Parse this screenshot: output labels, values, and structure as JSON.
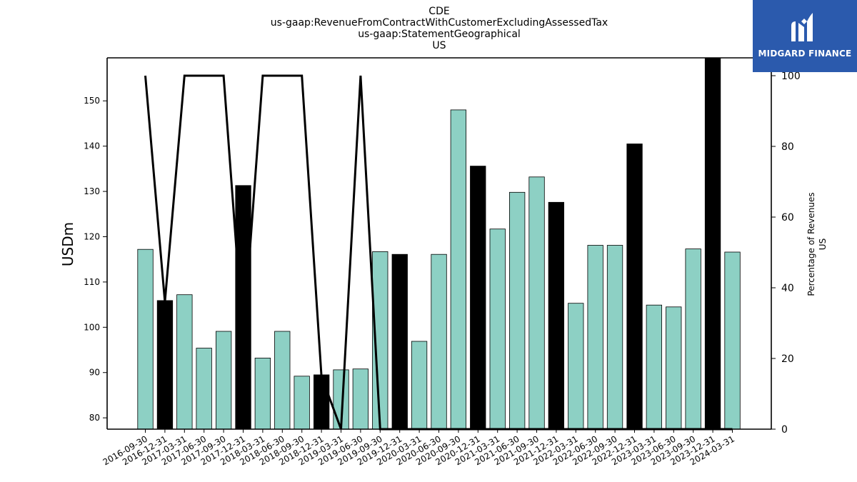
{
  "logo": {
    "text": "MIDGARD FINANCE",
    "icon": "midgard-logo-icon"
  },
  "chart_data": {
    "type": "bar",
    "title": [
      "CDE",
      "us-gaap:RevenueFromContractWithCustomerExcludingAssessedTax",
      "us-gaap:StatementGeographical",
      "US"
    ],
    "ylabel": "USDm",
    "ylabel_right": [
      "Percentage of Revenues",
      "US"
    ],
    "ylim": [
      77.5,
      159.5
    ],
    "ylim_right": [
      0,
      100
    ],
    "yticks": [
      80,
      90,
      100,
      110,
      120,
      130,
      140,
      150
    ],
    "yticks_right": [
      0,
      20,
      40,
      60,
      80,
      100
    ],
    "categories": [
      "2016-09-30",
      "2016-12-31",
      "2017-03-31",
      "2017-06-30",
      "2017-09-30",
      "2017-12-31",
      "2018-03-31",
      "2018-06-30",
      "2018-09-30",
      "2018-12-31",
      "2019-03-31",
      "2019-06-30",
      "2019-09-30",
      "2019-12-31",
      "2020-03-31",
      "2020-06-30",
      "2020-09-30",
      "2020-12-31",
      "2021-03-31",
      "2021-06-30",
      "2021-09-30",
      "2021-12-31",
      "2022-03-31",
      "2022-06-30",
      "2022-09-30",
      "2022-12-31",
      "2023-03-31",
      "2023-06-30",
      "2023-09-30",
      "2023-12-31",
      "2024-03-31"
    ],
    "series": [
      {
        "type": "bar",
        "values": [
          117.2,
          105.9,
          107.2,
          95.4,
          99.1,
          131.3,
          93.2,
          99.1,
          89.2,
          89.5,
          90.6,
          90.8,
          116.7,
          116.1,
          96.9,
          116.1,
          148.0,
          135.6,
          121.7,
          129.8,
          133.2,
          127.6,
          105.3,
          118.1,
          118.1,
          140.5,
          104.9,
          104.5,
          117.3,
          159.5,
          116.6
        ],
        "highlight": [
          false,
          true,
          false,
          false,
          false,
          true,
          false,
          false,
          false,
          true,
          false,
          false,
          false,
          true,
          false,
          false,
          false,
          true,
          false,
          false,
          false,
          true,
          false,
          false,
          false,
          true,
          false,
          false,
          false,
          true,
          false
        ],
        "color": "#8dd0c4",
        "highlight_color": "#000000"
      },
      {
        "type": "line",
        "axis": "right",
        "values": [
          100,
          null,
          100,
          100,
          100,
          null,
          100,
          100,
          100,
          null,
          null,
          100,
          0,
          0,
          0,
          0,
          0,
          0,
          0,
          0,
          0,
          0,
          0,
          0,
          0,
          0,
          0,
          0,
          0,
          0,
          0
        ],
        "values_full": [
          100,
          36,
          100,
          100,
          100,
          25,
          100,
          100,
          100,
          15,
          0,
          100,
          0,
          0,
          0,
          0,
          0,
          0,
          0,
          0,
          0,
          0,
          0,
          0,
          0,
          0,
          0,
          0,
          0,
          0,
          0
        ],
        "color": "#000000"
      }
    ],
    "grid": false
  }
}
